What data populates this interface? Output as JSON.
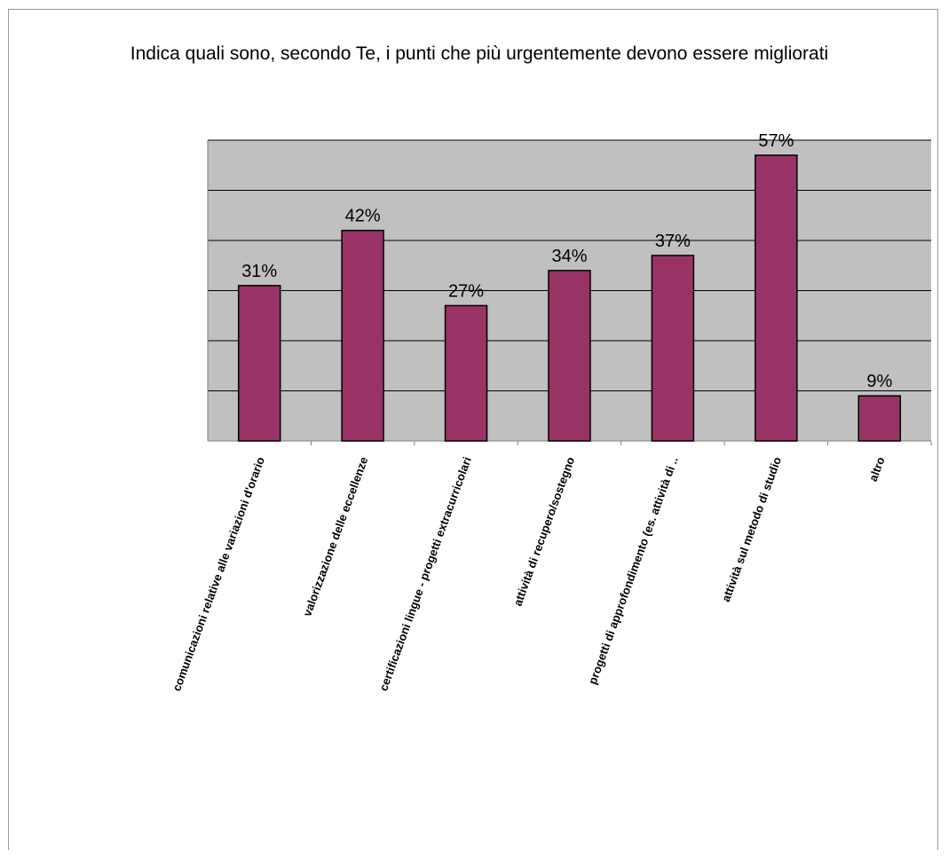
{
  "chart_data": {
    "type": "bar",
    "title": "Indica quali sono, secondo Te, i punti che più urgentemente devono essere migliorati",
    "categories": [
      "comunicazioni relative alle variazioni d'orario",
      "valorizzazione delle eccellenze",
      "certificazioni lingue - progetti extracurricolari",
      "attività di recupero/sostegno",
      "progetti di approfondimento  (es. attività di ..",
      "attività sul metodo di studio",
      "altro"
    ],
    "values": [
      31,
      42,
      27,
      34,
      37,
      57,
      9
    ],
    "data_labels": [
      "31%",
      "42%",
      "27%",
      "34%",
      "37%",
      "57%",
      "9%"
    ],
    "ylim": [
      0,
      60
    ],
    "grid": true,
    "legend": "none",
    "colors": {
      "bar": "#993366",
      "plot_background": "#c0c0c0",
      "grid": "#000000"
    }
  }
}
